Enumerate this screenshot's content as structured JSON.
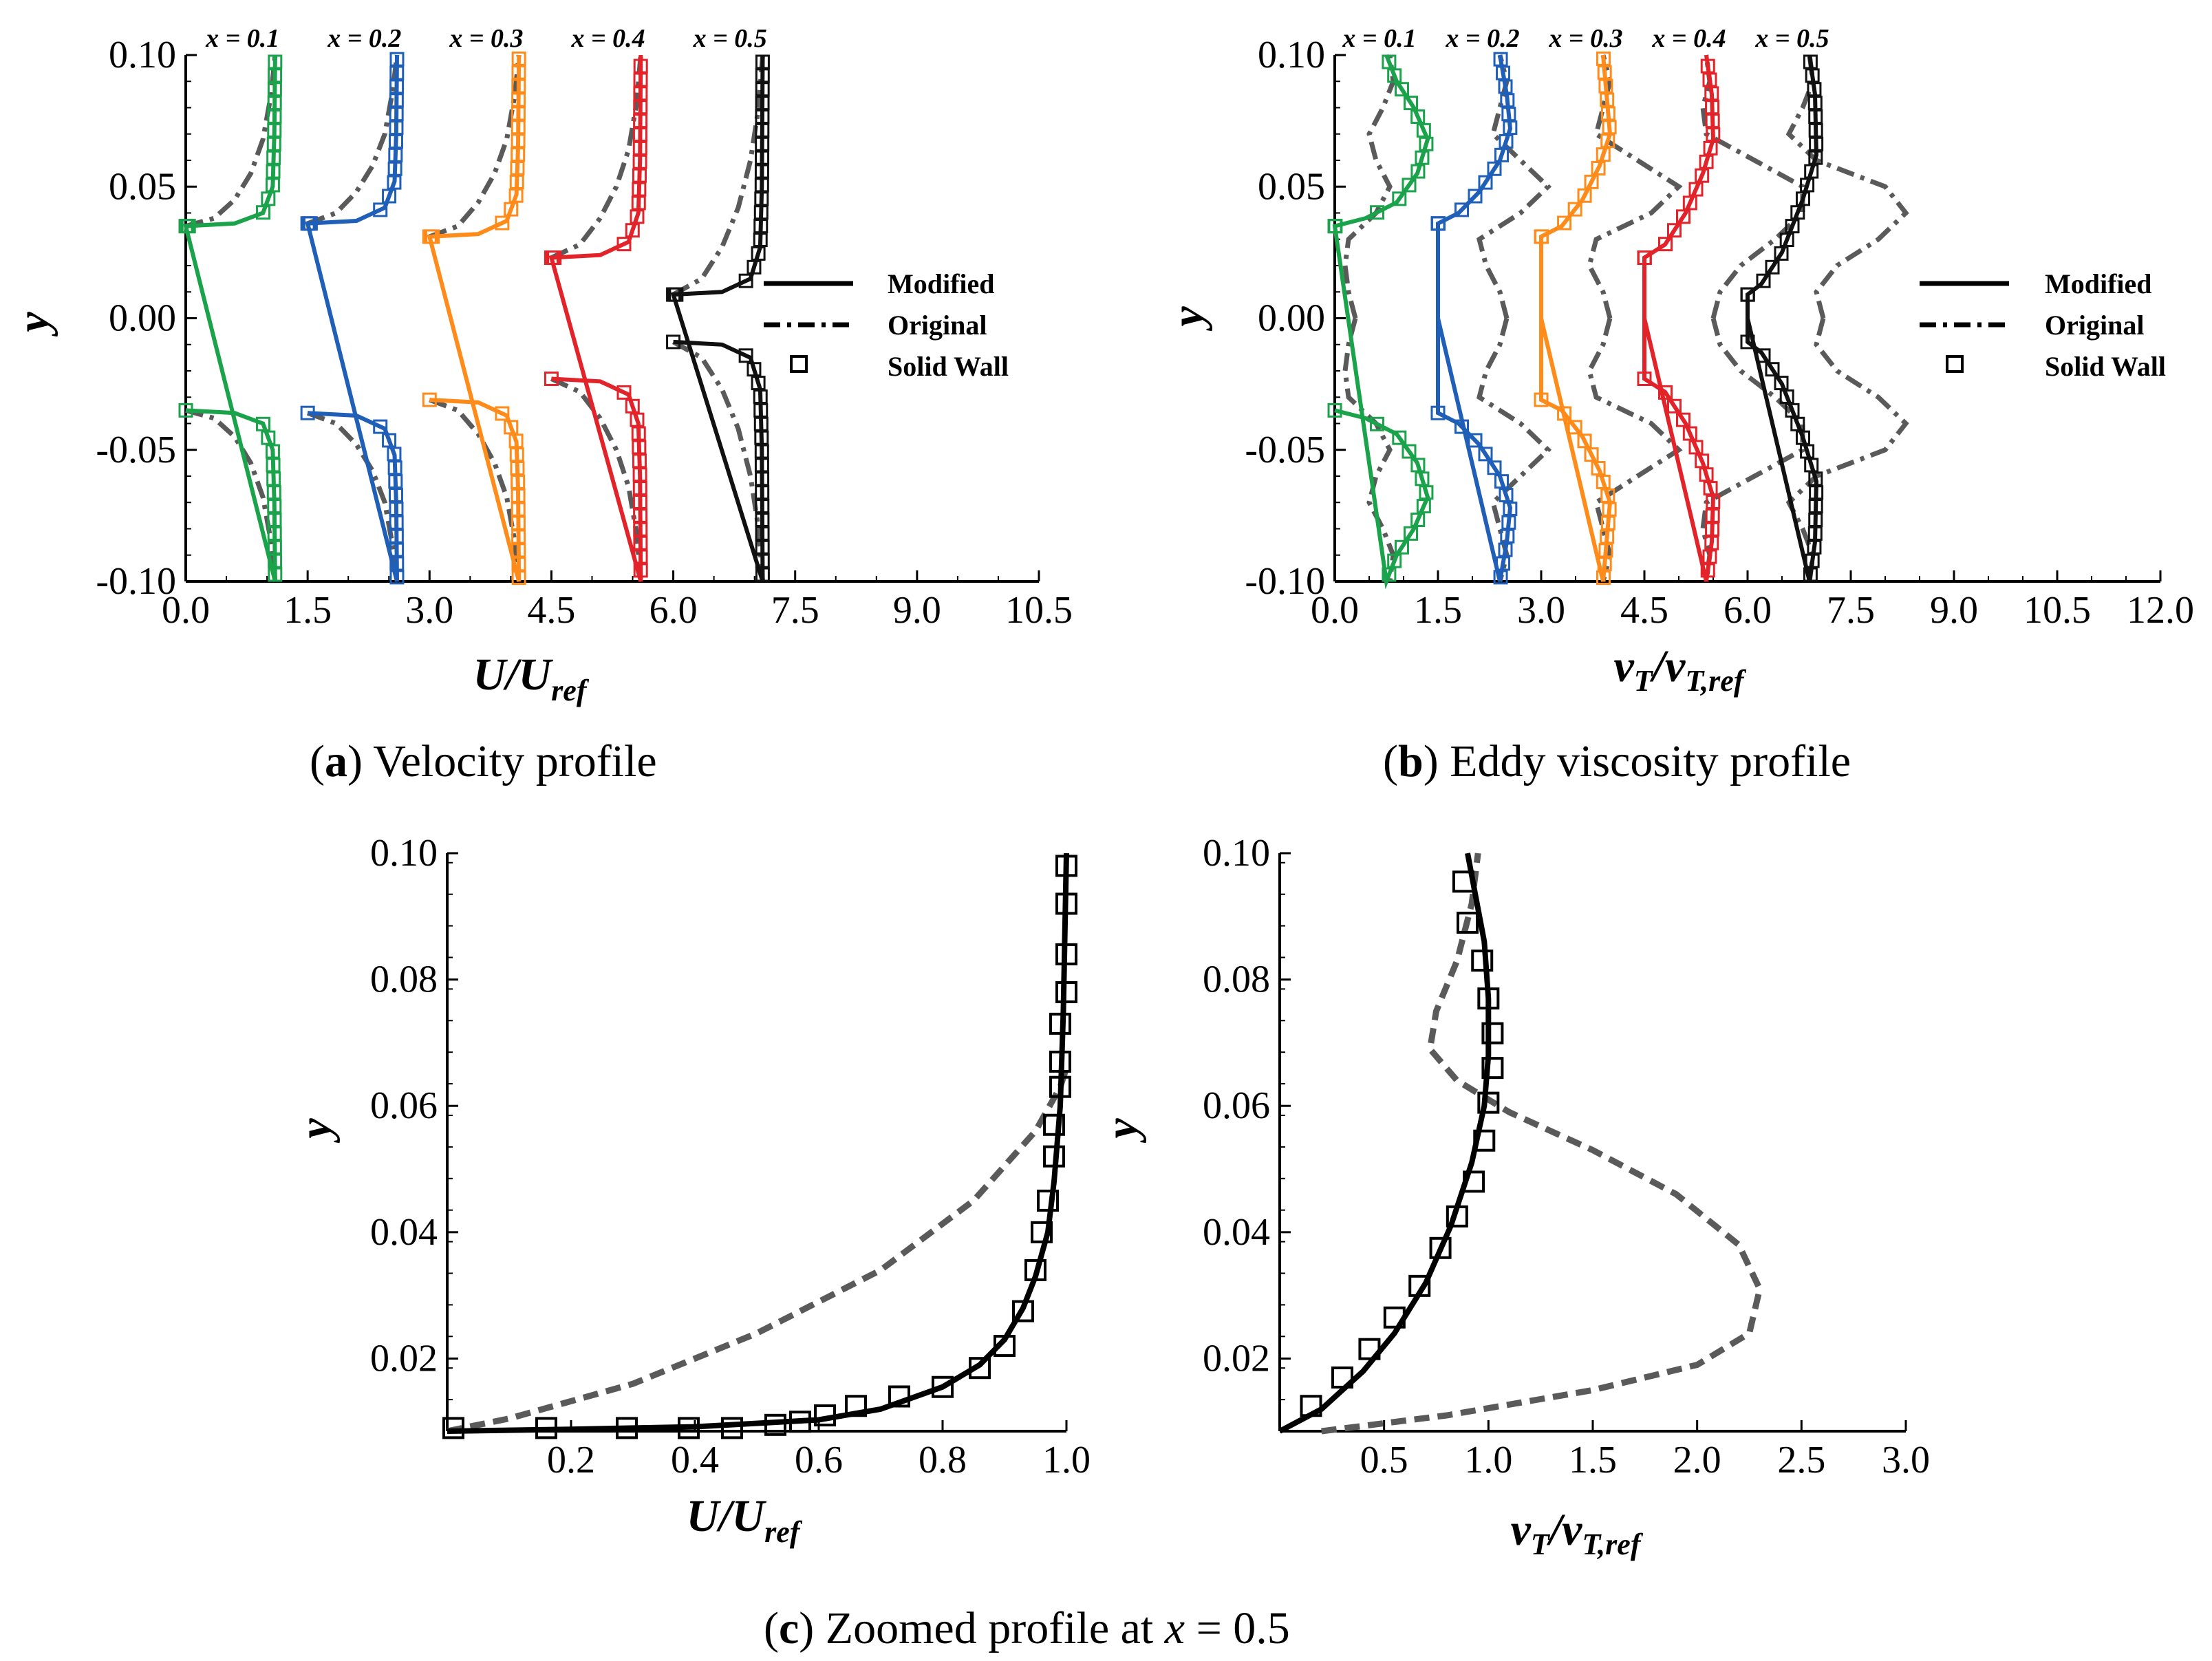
{
  "colors": {
    "x01": "#1aa34a",
    "x02": "#1f5fb8",
    "x03": "#ff8c1a",
    "x04": "#e3232a",
    "x05": "#111111",
    "original": "#5a5a5a"
  },
  "legend": {
    "modified": "Modified",
    "original": "Original",
    "solid_wall": "Solid Wall"
  },
  "captions": {
    "a_letter": "a",
    "a_text": "Velocity profile",
    "b_letter": "b",
    "b_text": "Eddy viscosity profile",
    "c_letter": "c",
    "c_text": "Zoomed profile at",
    "c_var": "x",
    "c_eq": "= 0.5"
  },
  "chart_data": [
    {
      "id": "a",
      "type": "line",
      "xlabel": "U/U_ref",
      "xlabel_main": "U/U",
      "xlabel_sub": "ref",
      "ylabel": "y",
      "xlim": [
        0,
        10.5
      ],
      "ylim": [
        -0.1,
        0.1
      ],
      "xticks": [
        "0.0",
        "1.5",
        "3.0",
        "4.5",
        "6.0",
        "7.5",
        "9.0",
        "10.5"
      ],
      "yticks": [
        "-0.10",
        "-0.05",
        "0.00",
        "0.05",
        "0.10"
      ],
      "offset_step": 1.5,
      "series_titles": [
        "x = 0.1",
        "x = 0.2",
        "x = 0.3",
        "x = 0.4",
        "x = 0.5"
      ],
      "modified": [
        {
          "name": "x = 0.1",
          "y": [
            0.035,
            0.036,
            0.04,
            0.05,
            0.07,
            0.1
          ],
          "v": [
            0.0,
            0.6,
            0.95,
            1.07,
            1.09,
            1.1
          ]
        },
        {
          "name": "x = 0.2",
          "y": [
            0.036,
            0.037,
            0.042,
            0.052,
            0.07,
            0.1
          ],
          "v": [
            0.0,
            0.6,
            0.95,
            1.07,
            1.09,
            1.1
          ]
        },
        {
          "name": "x = 0.3",
          "y": [
            0.031,
            0.032,
            0.037,
            0.047,
            0.065,
            0.1
          ],
          "v": [
            0.0,
            0.6,
            0.95,
            1.07,
            1.09,
            1.1
          ]
        },
        {
          "name": "x = 0.4",
          "y": [
            0.023,
            0.024,
            0.029,
            0.04,
            0.06,
            0.1
          ],
          "v": [
            0.0,
            0.6,
            0.95,
            1.07,
            1.09,
            1.1
          ]
        },
        {
          "name": "x = 0.5",
          "y": [
            0.009,
            0.01,
            0.015,
            0.027,
            0.05,
            0.1
          ],
          "v": [
            0.0,
            0.6,
            0.95,
            1.07,
            1.09,
            1.1
          ]
        }
      ],
      "original": [
        {
          "name": "x = 0.1",
          "y": [
            0.035,
            0.038,
            0.045,
            0.055,
            0.068,
            0.085,
            0.1
          ],
          "v": [
            0.0,
            0.35,
            0.6,
            0.8,
            0.95,
            1.05,
            1.1
          ]
        },
        {
          "name": "x = 0.2",
          "y": [
            0.036,
            0.04,
            0.048,
            0.058,
            0.07,
            0.087,
            0.1
          ],
          "v": [
            0.0,
            0.35,
            0.6,
            0.8,
            0.95,
            1.05,
            1.1
          ]
        },
        {
          "name": "x = 0.3",
          "y": [
            0.031,
            0.035,
            0.044,
            0.055,
            0.068,
            0.085,
            0.1
          ],
          "v": [
            0.0,
            0.35,
            0.6,
            0.8,
            0.95,
            1.05,
            1.1
          ]
        },
        {
          "name": "x = 0.4",
          "y": [
            0.023,
            0.028,
            0.038,
            0.05,
            0.064,
            0.082,
            0.1
          ],
          "v": [
            0.0,
            0.35,
            0.6,
            0.8,
            0.95,
            1.05,
            1.1
          ]
        },
        {
          "name": "x = 0.5",
          "y": [
            0.009,
            0.015,
            0.027,
            0.042,
            0.06,
            0.08,
            0.1
          ],
          "v": [
            0.0,
            0.35,
            0.6,
            0.8,
            0.95,
            1.05,
            1.1
          ]
        }
      ]
    },
    {
      "id": "b",
      "type": "line",
      "xlabel": "νT/νT,ref",
      "xlabel_main": "ν",
      "xlabel_sub": "T",
      "xlabel_main2": "/ν",
      "xlabel_sub2": "T,ref",
      "ylabel": "y",
      "xlim": [
        0,
        12.0
      ],
      "ylim": [
        -0.1,
        0.1
      ],
      "xticks": [
        "0.0",
        "1.5",
        "3.0",
        "4.5",
        "6.0",
        "7.5",
        "9.0",
        "10.5",
        "12.0"
      ],
      "yticks": [
        "-0.10",
        "-0.05",
        "0.00",
        "0.05",
        "0.10"
      ],
      "offset_step": 1.5,
      "series_titles": [
        "x = 0.1",
        "x = 0.2",
        "x = 0.3",
        "x = 0.4",
        "x = 0.5"
      ],
      "modified": [
        {
          "name": "x = 0.1",
          "y": [
            0.035,
            0.038,
            0.044,
            0.055,
            0.068,
            0.08,
            0.09,
            0.1
          ],
          "v": [
            0.0,
            0.45,
            0.9,
            1.2,
            1.35,
            1.15,
            0.9,
            0.75
          ]
        },
        {
          "name": "x = 0.2",
          "y": [
            0.0,
            0.036,
            0.04,
            0.048,
            0.06,
            0.072,
            0.085,
            0.1
          ],
          "v": [
            0.0,
            0.0,
            0.3,
            0.6,
            0.9,
            1.05,
            1.0,
            0.9
          ]
        },
        {
          "name": "x = 0.3",
          "y": [
            0.0,
            0.031,
            0.035,
            0.045,
            0.058,
            0.07,
            0.085,
            0.1
          ],
          "v": [
            0.0,
            0.0,
            0.3,
            0.6,
            0.85,
            1.0,
            0.95,
            0.9
          ]
        },
        {
          "name": "x = 0.4",
          "y": [
            0.0,
            0.023,
            0.028,
            0.04,
            0.055,
            0.068,
            0.085,
            0.1
          ],
          "v": [
            0.0,
            0.0,
            0.3,
            0.6,
            0.85,
            1.0,
            0.98,
            0.9
          ]
        },
        {
          "name": "x = 0.5",
          "y": [
            0.0,
            0.009,
            0.013,
            0.025,
            0.045,
            0.062,
            0.085,
            0.1
          ],
          "v": [
            0.0,
            0.0,
            0.2,
            0.5,
            0.8,
            1.0,
            0.98,
            0.9
          ]
        }
      ],
      "original": [
        {
          "name": "x = 0.1",
          "y": [
            0.0,
            0.01,
            0.02,
            0.03,
            0.04,
            0.05,
            0.06,
            0.07,
            0.08,
            0.09,
            0.1
          ],
          "v": [
            0.3,
            0.2,
            0.15,
            0.2,
            0.6,
            0.8,
            0.6,
            0.5,
            0.7,
            0.85,
            0.8
          ]
        },
        {
          "name": "x = 0.2",
          "y": [
            0.0,
            0.01,
            0.02,
            0.03,
            0.04,
            0.05,
            0.06,
            0.07,
            0.08,
            0.09,
            0.1
          ],
          "v": [
            1.0,
            0.9,
            0.7,
            0.6,
            1.2,
            1.6,
            1.2,
            0.8,
            0.9,
            1.0,
            0.9
          ]
        },
        {
          "name": "x = 0.3",
          "y": [
            0.0,
            0.01,
            0.02,
            0.03,
            0.04,
            0.05,
            0.06,
            0.07,
            0.08,
            0.09,
            0.1
          ],
          "v": [
            1.0,
            0.9,
            0.7,
            0.8,
            1.6,
            2.0,
            1.4,
            0.8,
            0.9,
            1.0,
            0.9
          ]
        },
        {
          "name": "x = 0.4",
          "y": [
            0.0,
            0.01,
            0.02,
            0.03,
            0.04,
            0.05,
            0.06,
            0.07,
            0.08,
            0.09,
            0.1
          ],
          "v": [
            1.0,
            1.1,
            1.4,
            1.9,
            2.3,
            2.3,
            1.6,
            0.9,
            0.85,
            0.95,
            0.9
          ]
        },
        {
          "name": "x = 0.5",
          "y": [
            0.0,
            0.01,
            0.02,
            0.03,
            0.04,
            0.05,
            0.06,
            0.07,
            0.08,
            0.09,
            0.1
          ],
          "v": [
            1.1,
            1.0,
            1.3,
            1.9,
            2.3,
            2.0,
            1.0,
            0.6,
            0.8,
            0.95,
            0.9
          ]
        }
      ]
    },
    {
      "id": "c-left",
      "type": "line",
      "xlabel": "U/U_ref",
      "xlabel_main": "U/U",
      "xlabel_sub": "ref",
      "ylabel": "y",
      "xlim": [
        0,
        1.0
      ],
      "ylim": [
        0.0085,
        0.1
      ],
      "xticks": [
        "0.2",
        "0.4",
        "0.6",
        "0.8",
        "1.0"
      ],
      "xtick_values": [
        0.2,
        0.4,
        0.6,
        0.8,
        1.0
      ],
      "yticks": [
        "0.02",
        "0.04",
        "0.06",
        "0.08",
        "0.10"
      ],
      "ytick_values": [
        0.02,
        0.04,
        0.06,
        0.08,
        0.1
      ],
      "modified": {
        "x": [
          0.0,
          0.2,
          0.4,
          0.6,
          0.7,
          0.8,
          0.86,
          0.9,
          0.93,
          0.95,
          0.97,
          0.98,
          0.99,
          0.995,
          1.0
        ],
        "y": [
          0.0085,
          0.0088,
          0.0092,
          0.0103,
          0.012,
          0.0155,
          0.019,
          0.023,
          0.028,
          0.033,
          0.04,
          0.048,
          0.06,
          0.075,
          0.1
        ]
      },
      "original": {
        "x": [
          0.0,
          0.1,
          0.3,
          0.5,
          0.7,
          0.85,
          0.95,
          0.99,
          1.0
        ],
        "y": [
          0.0085,
          0.0105,
          0.016,
          0.024,
          0.034,
          0.045,
          0.056,
          0.063,
          0.066
        ]
      },
      "solid_wall": {
        "x": [
          0.01,
          0.16,
          0.29,
          0.39,
          0.46,
          0.53,
          0.57,
          0.61,
          0.66,
          0.73,
          0.8,
          0.86,
          0.9,
          0.93,
          0.95,
          0.96,
          0.97,
          0.98,
          0.98,
          0.99,
          0.99,
          0.99,
          1.0,
          1.0,
          1.0,
          1.0
        ],
        "y": [
          0.009,
          0.009,
          0.009,
          0.009,
          0.009,
          0.0095,
          0.01,
          0.011,
          0.0125,
          0.014,
          0.0155,
          0.0185,
          0.022,
          0.0275,
          0.034,
          0.04,
          0.045,
          0.052,
          0.057,
          0.063,
          0.067,
          0.073,
          0.078,
          0.084,
          0.092,
          0.098
        ]
      }
    },
    {
      "id": "c-right",
      "type": "line",
      "xlabel": "νT/νT,ref",
      "xlabel_main": "ν",
      "xlabel_sub": "T",
      "xlabel_main2": "/ν",
      "xlabel_sub2": "T,ref",
      "ylabel": "y",
      "xlim": [
        0,
        3.0
      ],
      "ylim": [
        0.0085,
        0.1
      ],
      "xticks": [
        "0.5",
        "1.0",
        "1.5",
        "2.0",
        "2.5",
        "3.0"
      ],
      "xtick_values": [
        0.5,
        1.0,
        1.5,
        2.0,
        2.5,
        3.0
      ],
      "yticks": [
        "0.02",
        "0.04",
        "0.06",
        "0.08",
        "0.10"
      ],
      "ytick_values": [
        0.02,
        0.04,
        0.06,
        0.08,
        0.1
      ],
      "modified": {
        "x": [
          0.0,
          0.2,
          0.4,
          0.55,
          0.7,
          0.82,
          0.92,
          0.98,
          1.0,
          1.0,
          0.98,
          0.94,
          0.9
        ],
        "y": [
          0.0085,
          0.012,
          0.018,
          0.024,
          0.032,
          0.041,
          0.051,
          0.06,
          0.068,
          0.077,
          0.086,
          0.093,
          0.1
        ]
      },
      "original": {
        "x": [
          0.2,
          0.8,
          1.5,
          2.0,
          2.25,
          2.3,
          2.2,
          1.9,
          1.5,
          1.1,
          0.85,
          0.72,
          0.75,
          0.85,
          0.92,
          0.95
        ],
        "y": [
          0.0085,
          0.011,
          0.015,
          0.019,
          0.024,
          0.031,
          0.038,
          0.046,
          0.053,
          0.059,
          0.064,
          0.069,
          0.075,
          0.083,
          0.092,
          0.1
        ]
      },
      "solid_wall": {
        "x": [
          0.15,
          0.3,
          0.43,
          0.55,
          0.67,
          0.77,
          0.85,
          0.93,
          0.98,
          1.0,
          1.02,
          1.02,
          1.0,
          0.97,
          0.9,
          0.88
        ],
        "y": [
          0.0125,
          0.017,
          0.0215,
          0.0265,
          0.0315,
          0.0375,
          0.0425,
          0.048,
          0.0545,
          0.0605,
          0.066,
          0.0715,
          0.077,
          0.083,
          0.089,
          0.0955
        ]
      }
    }
  ]
}
